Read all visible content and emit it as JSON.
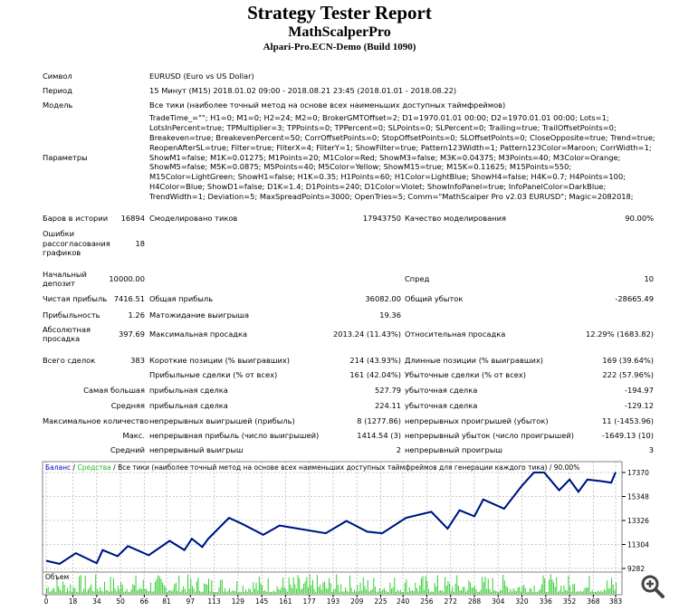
{
  "header": {
    "title": "Strategy Tester Report",
    "expert": "MathScalperPro",
    "server": "Alpari-Pro.ECN-Demo (Build 1090)"
  },
  "info": {
    "symbol_label": "Символ",
    "symbol_value": "EURUSD (Euro vs US Dollar)",
    "period_label": "Период",
    "period_value": "15 Минут (M15) 2018.01.02 09:00 - 2018.08.21 23:45 (2018.01.01 - 2018.08.22)",
    "model_label": "Модель",
    "model_value": "Все тики (наиболее точный метод на основе всех наименьших доступных таймфреймов)",
    "params_label": "Параметры",
    "params_value": "TradeTime_=\"\"; H1=0; M1=0; H2=24; M2=0; BrokerGMTOffset=2; D1=1970.01.01 00:00; D2=1970.01.01 00:00; Lots=1; LotsInPercent=true; TPMultiplier=3; TPPoints=0; TPPercent=0; SLPoints=0; SLPercent=0; Trailing=true; TrailOffsetPoints=0; Breakeven=true; BreakevenPercent=50; CorrOffsetPoints=0; StopOffsetPoints=0; SLOffsetPoints=0; CloseOpposite=true; Trend=true; ReopenAfterSL=true; Filter=true; FilterX=4; FilterY=1; ShowFilter=true; Pattern123Width=1; Pattern123Color=Maroon; CorrWidth=1; ShowM1=false; M1K=0.01275; M1Points=20; M1Color=Red; ShowM3=false; M3K=0.04375; M3Points=40; M3Color=Orange; ShowM5=false; M5K=0.0875; M5Points=40; M5Color=Yellow; ShowM15=true; M15K=0.11625; M15Points=550; M15Color=LightGreen; ShowH1=false; H1K=0.35; H1Points=60; H1Color=LightBlue; ShowH4=false; H4K=0.7; H4Points=100; H4Color=Blue; ShowD1=false; D1K=1.4; D1Points=240; D1Color=Violet; ShowInfoPanel=true; InfoPanelColor=DarkBlue; TrendWidth=1; Deviation=5; MaxSpreadPoints=3000; OpenTries=5; Comm=\"MathScalper Pro v2.03 EURUSD\"; Magic=2082018;"
  },
  "stats": {
    "bars_label": "Баров в истории",
    "bars": "16894",
    "ticks_label": "Смоделировано тиков",
    "ticks": "17943750",
    "quality_label": "Качество моделирования",
    "quality": "90.00%",
    "errors_label": "Ошибки рассогласования графиков",
    "errors": "18",
    "deposit_label": "Начальный депозит",
    "deposit": "10000.00",
    "spread_label": "Спред",
    "spread": "10",
    "net_label": "Чистая прибыль",
    "net": "7416.51",
    "gross_profit_label": "Общая прибыль",
    "gross_profit": "36082.00",
    "gross_loss_label": "Общий убыток",
    "gross_loss": "-28665.49",
    "pf_label": "Прибыльность",
    "pf": "1.26",
    "expected_label": "Матожидание выигрыша",
    "expected": "19.36",
    "abs_dd_label": "Абсолютная просадка",
    "abs_dd": "397.69",
    "max_dd_label": "Максимальная просадка",
    "max_dd": "2013.24 (11.43%)",
    "rel_dd_label": "Относительная просадка",
    "rel_dd": "12.29% (1683.82)",
    "total_label": "Всего сделок",
    "total": "383",
    "short_label": "Короткие позиции (% выигравших)",
    "short": "214 (43.93%)",
    "long_label": "Длинные позиции (% выигравших)",
    "long": "169 (39.64%)",
    "profit_trades_label": "Прибыльные сделки (% от всех)",
    "profit_trades": "161 (42.04%)",
    "loss_trades_label": "Убыточные сделки (% от всех)",
    "loss_trades": "222 (57.96%)",
    "largest_label": "Самая большая",
    "largest_profit_label": "прибыльная сделка",
    "largest_profit": "527.79",
    "largest_loss_label": "убыточная сделка",
    "largest_loss": "-194.97",
    "average_label": "Средняя",
    "avg_profit_label": "прибыльная сделка",
    "avg_profit": "224.11",
    "avg_loss_label": "убыточная сделка",
    "avg_loss": "-129.12",
    "max_count_label": "Максимальное количество",
    "cons_wins_label": "непрерывных выигрышей (прибыль)",
    "cons_wins": "8 (1277.86)",
    "cons_losses_label": "непрерывных проигрышей (убыток)",
    "cons_losses": "11 (-1453.96)",
    "max_label": "Макс.",
    "cons_profit_label": "непрерывная прибыль (число выигрышей)",
    "cons_profit": "1414.54 (3)",
    "cons_loss_label": "непрерывный убыток (число проигрышей)",
    "cons_loss": "-1649.13 (10)",
    "avg_cons_label": "Средний",
    "avg_cons_win_label": "непрерывный выигрыш",
    "avg_cons_win": "2",
    "avg_cons_loss_label": "непрерывный проигрыш",
    "avg_cons_loss": "3"
  },
  "chart_data": {
    "type": "line",
    "legend": {
      "balance": "Баланс",
      "equity": "Средства",
      "sep": " / ",
      "rest": " / Все тики (наиболее точный метод на основе всех наименьших доступных таймфреймов для генерации каждого тика) / 90.00%"
    },
    "volume_label": "Объем",
    "colors": {
      "balance": "#0000a0",
      "equity": "#33cc33",
      "volume": "#33cc33",
      "grid": "#c8c8c8"
    },
    "grid": true,
    "ylim": [
      9282,
      17370
    ],
    "yticks": [
      "17370",
      "15348",
      "13326",
      "11304",
      "9282"
    ],
    "xlim": [
      0,
      383
    ],
    "xticks": [
      "0",
      "18",
      "34",
      "50",
      "66",
      "81",
      "97",
      "113",
      "129",
      "145",
      "161",
      "177",
      "193",
      "209",
      "225",
      "240",
      "256",
      "272",
      "288",
      "304",
      "320",
      "336",
      "352",
      "368",
      "383"
    ],
    "balance": {
      "x": [
        0,
        9,
        20,
        34,
        38,
        48,
        55,
        69,
        83,
        93,
        98,
        105,
        109,
        123,
        132,
        146,
        157,
        188,
        202,
        216,
        226,
        242,
        259,
        270,
        278,
        288,
        294,
        308,
        320,
        328,
        335,
        345,
        352,
        358,
        364,
        373,
        380,
        383
      ],
      "y": [
        9928,
        9670,
        10574,
        9721,
        10833,
        10316,
        11168,
        10393,
        11607,
        10833,
        11788,
        11091,
        11788,
        13546,
        13029,
        12124,
        12900,
        12253,
        13287,
        12383,
        12253,
        13546,
        14062,
        12641,
        14191,
        13675,
        15096,
        14320,
        16259,
        17370,
        17370,
        15872,
        16776,
        15742,
        16776,
        16647,
        16517,
        17400
      ]
    }
  },
  "icons": {
    "zoom": "zoom-in-icon"
  }
}
